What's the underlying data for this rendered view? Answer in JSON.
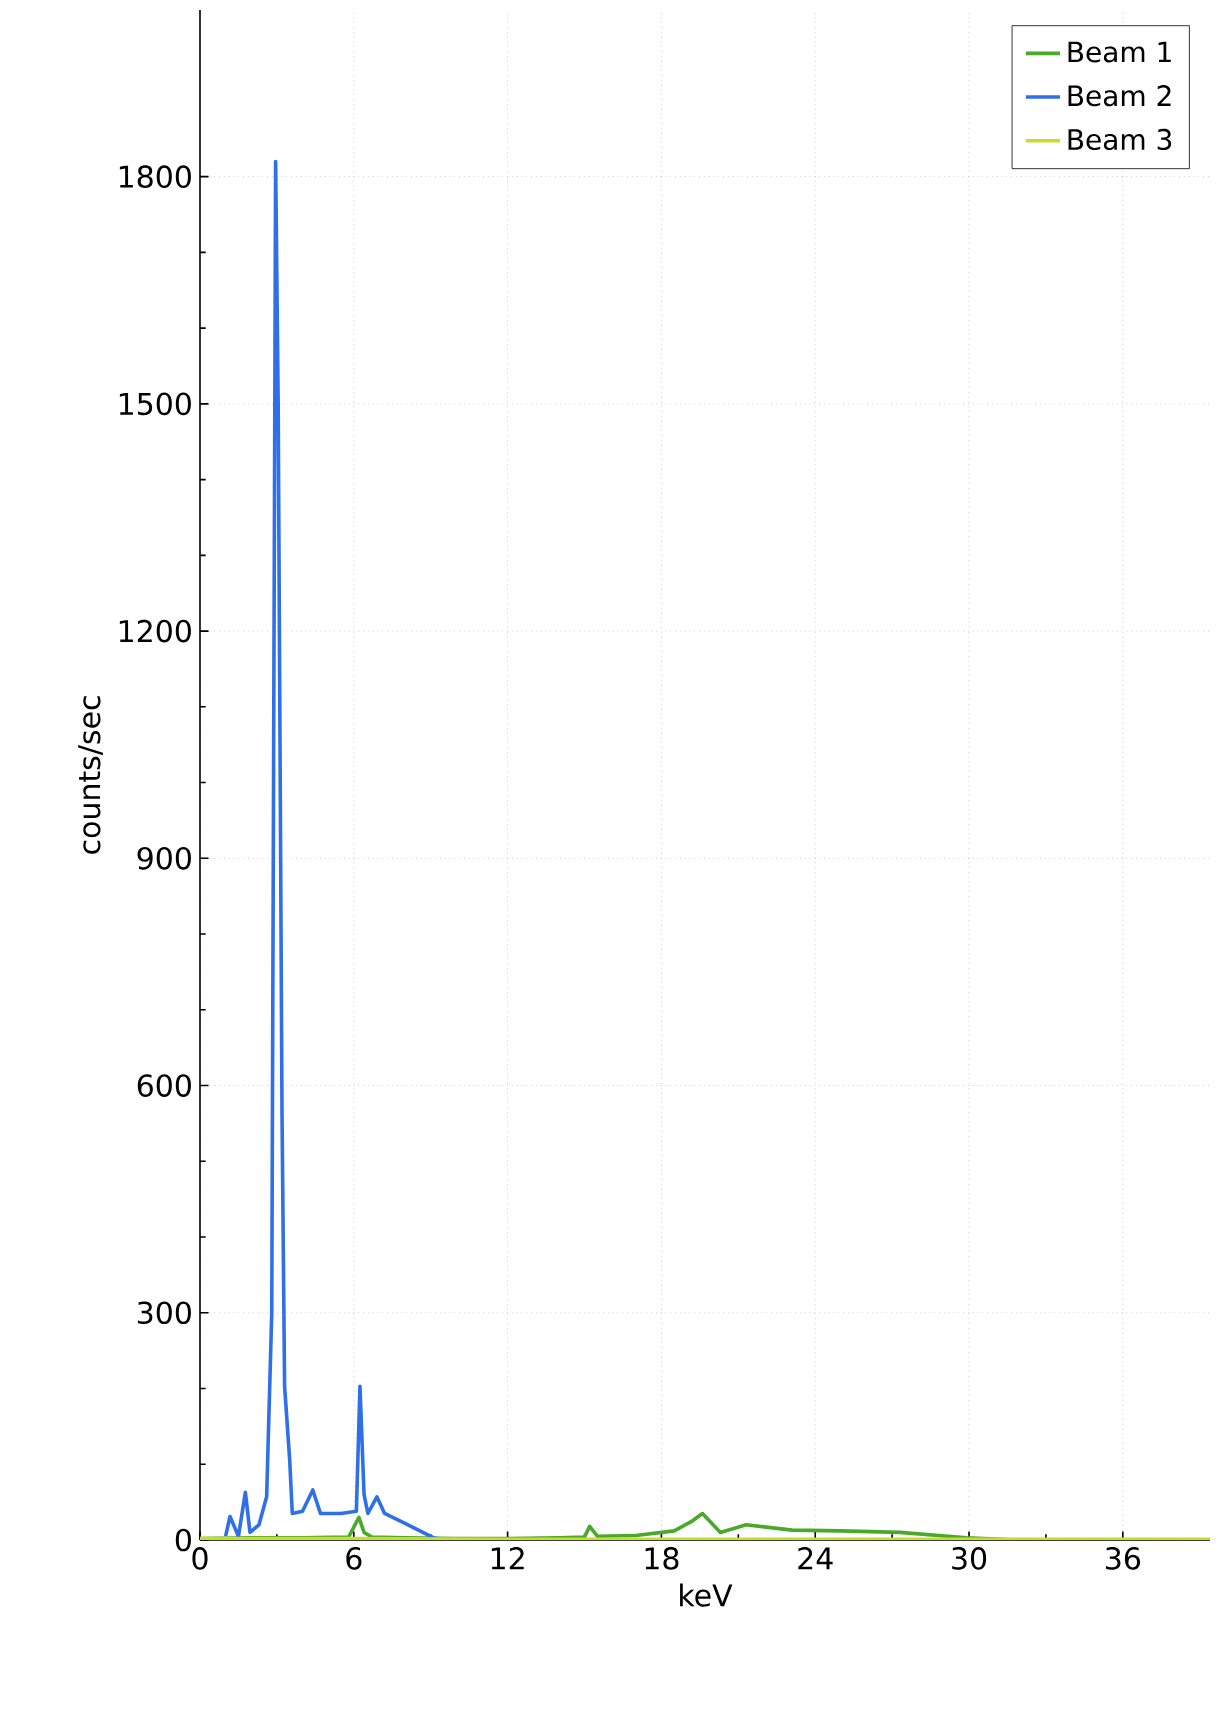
{
  "chart_data": {
    "type": "line",
    "xlabel": "keV",
    "ylabel": "counts/sec",
    "xlim": [
      0,
      39.4
    ],
    "ylim": [
      0,
      2020
    ],
    "xticks": [
      0,
      6,
      12,
      18,
      24,
      30,
      36
    ],
    "yticks": [
      0,
      300,
      600,
      900,
      1200,
      1500,
      1800
    ],
    "grid": true,
    "legend": "top right",
    "marker": "none",
    "line_style": "solid",
    "series": [
      {
        "name": "Beam 1",
        "color": "#4aa82a",
        "x": [
          0,
          2,
          4,
          5.8,
          6.2,
          6.4,
          6.7,
          8,
          10,
          12,
          14,
          15,
          15.2,
          15.5,
          17,
          18.5,
          19.2,
          19.6,
          20.3,
          21.3,
          23.1,
          25,
          27.3,
          29.9,
          31.9
        ],
        "values": [
          2,
          3,
          3,
          4,
          30,
          10,
          4,
          3,
          2,
          2,
          3,
          4,
          18,
          5,
          6,
          12,
          25,
          35,
          10,
          20,
          13,
          12,
          10,
          3,
          0
        ]
      },
      {
        "name": "Beam 2",
        "color": "#2f6fe8",
        "x": [
          1.0,
          1.17,
          1.5,
          1.77,
          1.95,
          2.3,
          2.6,
          2.8,
          2.95,
          3.05,
          3.2,
          3.3,
          3.5,
          3.6,
          4.0,
          4.4,
          4.7,
          5.5,
          6.1,
          6.24,
          6.4,
          6.55,
          6.9,
          7.2,
          8.0,
          9.1,
          9.5
        ],
        "values": [
          5,
          31,
          5,
          63,
          10,
          20,
          57,
          300,
          1820,
          1500,
          563,
          203,
          105,
          35,
          38,
          66,
          35,
          35,
          38,
          203,
          60,
          35,
          57,
          35,
          22,
          3,
          0
        ]
      },
      {
        "name": "Beam 3",
        "color": "#c8dc2a",
        "x": [
          0,
          6,
          12,
          18,
          24,
          30,
          36,
          39.4
        ],
        "values": [
          2,
          2,
          1,
          1,
          1,
          1,
          1,
          1
        ]
      }
    ]
  }
}
